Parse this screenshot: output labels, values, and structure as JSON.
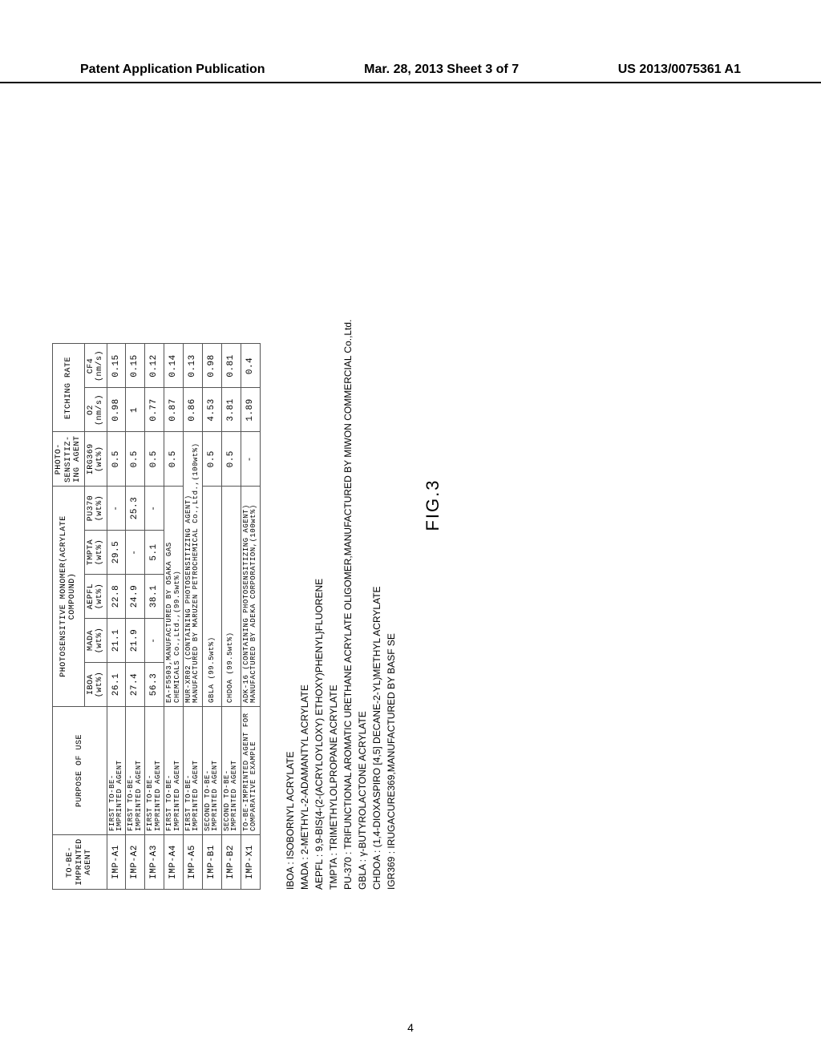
{
  "header": {
    "left": "Patent Application Publication",
    "center": "Mar. 28, 2013  Sheet 3 of 7",
    "right": "US 2013/0075361 A1"
  },
  "table": {
    "col_headers_top": {
      "agent": "TO-BE-\nIMPRINTED\nAGENT",
      "purpose": "PURPOSE OF USE",
      "monomer_group": "PHOTOSENSITIVE MONOMER(ACRYLATE COMPOUND)",
      "sensitizer_group": "PHOTO-\nSENSITIZ-\nING AGENT",
      "etch_group": "ETCHING RATE"
    },
    "col_headers_sub": {
      "iboa": "IBOA\n(wt%)",
      "mada": "MADA\n(wt%)",
      "aepfl": "AEPFL\n(wt%)",
      "tmpta": "TMPTA\n(wt%)",
      "pu370": "PU370\n(wt%)",
      "irg369": "IRG369\n(wt%)",
      "o2": "O2\n(nm/s)",
      "cf4": "CF4\n(nm/s)"
    },
    "rows": [
      {
        "id": "IMP-A1",
        "purpose": "FIRST TO-BE-\nIMPRINTED AGENT",
        "iboa": "26.1",
        "mada": "21.1",
        "aepfl": "22.8",
        "tmpta": "29.5",
        "pu370": "-",
        "irg": "0.5",
        "o2": "0.98",
        "cf4": "0.15"
      },
      {
        "id": "IMP-A2",
        "purpose": "FIRST TO-BE-\nIMPRINTED AGENT",
        "iboa": "27.4",
        "mada": "21.9",
        "aepfl": "24.9",
        "tmpta": "-",
        "pu370": "25.3",
        "irg": "0.5",
        "o2": "1",
        "cf4": "0.15"
      },
      {
        "id": "IMP-A3",
        "purpose": "FIRST TO-BE-\nIMPRINTED AGENT",
        "iboa": "56.3",
        "mada": "-",
        "aepfl": "38.1",
        "tmpta": "5.1",
        "pu370": "-",
        "irg": "0.5",
        "o2": "0.77",
        "cf4": "0.12"
      },
      {
        "id": "IMP-A4",
        "purpose": "FIRST TO-BE-\nIMPRINTED AGENT",
        "span": "EA-F5503,MANUFACTURED BY OSAKA GAS\nCHEMICALS Co.,Ltd.,(99.5wt%)",
        "irg": "0.5",
        "o2": "0.87",
        "cf4": "0.14"
      },
      {
        "id": "IMP-A5",
        "purpose": "FIRST TO-BE-\nIMPRINTED AGENT",
        "span": "MUR-XR02 (CONTAINING PHOTOSENSITIZING AGENT)\nMANUFACTURED BY MARUZEN PETROCHEMICAL Co.,Ltd.,(100wt%)",
        "irg": "",
        "o2": "0.86",
        "cf4": "0.13"
      },
      {
        "id": "IMP-B1",
        "purpose": "SECOND TO-BE-\nIMPRINTED AGENT",
        "span": "GBLA    (99.5wt%)",
        "irg": "0.5",
        "o2": "4.53",
        "cf4": "0.98"
      },
      {
        "id": "IMP-B2",
        "purpose": "SECOND TO-BE-\nIMPRINTED AGENT",
        "span": "CHDOA    (99.5wt%)",
        "irg": "0.5",
        "o2": "3.81",
        "cf4": "0.81"
      },
      {
        "id": "IMP-X1",
        "purpose": "TO-BE-IMPRINTED AGENT FOR\nCOMPARATIVE EXAMPLE",
        "span": "ADK-16 (CONTAINING PHOTOSENSITIZING AGENT)\nMANUFACTURED BY ADEKA CORPORATION,(100wt%)",
        "irg": "-",
        "o2": "1.89",
        "cf4": "0.4"
      }
    ]
  },
  "defs": [
    "IBOA : ISOBORNYL ACRYLATE",
    "MADA : 2-METHYL-2-ADAMANTYL ACRYLATE",
    "AEPFL : 9,9-BIS{4-(2-(ACRYLOYLOXY) ETHOXY)PHENYL}FLUORENE",
    "TMPTA : TRIMETHYLOLPROPANE ACRYLATE",
    "PU-370 : TRIFUNCTIONAL AROMATIC URETHANE ACRYLATE OLIGOMER,MANUFACTURED BY MIWON COMMERCIAL Co.,Ltd.",
    "GBLA : γ-BUTYROLACTONE ACRYLATE",
    "CHDOA : (1,4-DIOXASPIRO [4,5] DECANE-2-YL)METHYL ACRYLATE",
    "IGR369 : IRUGACURE369,MANUFACTURED BY BASF SE"
  ],
  "fig_label": "FIG.3",
  "page_number": "4",
  "widths": {
    "agent": 68,
    "purpose": 160,
    "iboa": 55,
    "mada": 55,
    "aepfl": 55,
    "tmpta": 55,
    "pu370": 55,
    "irg": 60,
    "o2": 55,
    "cf4": 55
  }
}
